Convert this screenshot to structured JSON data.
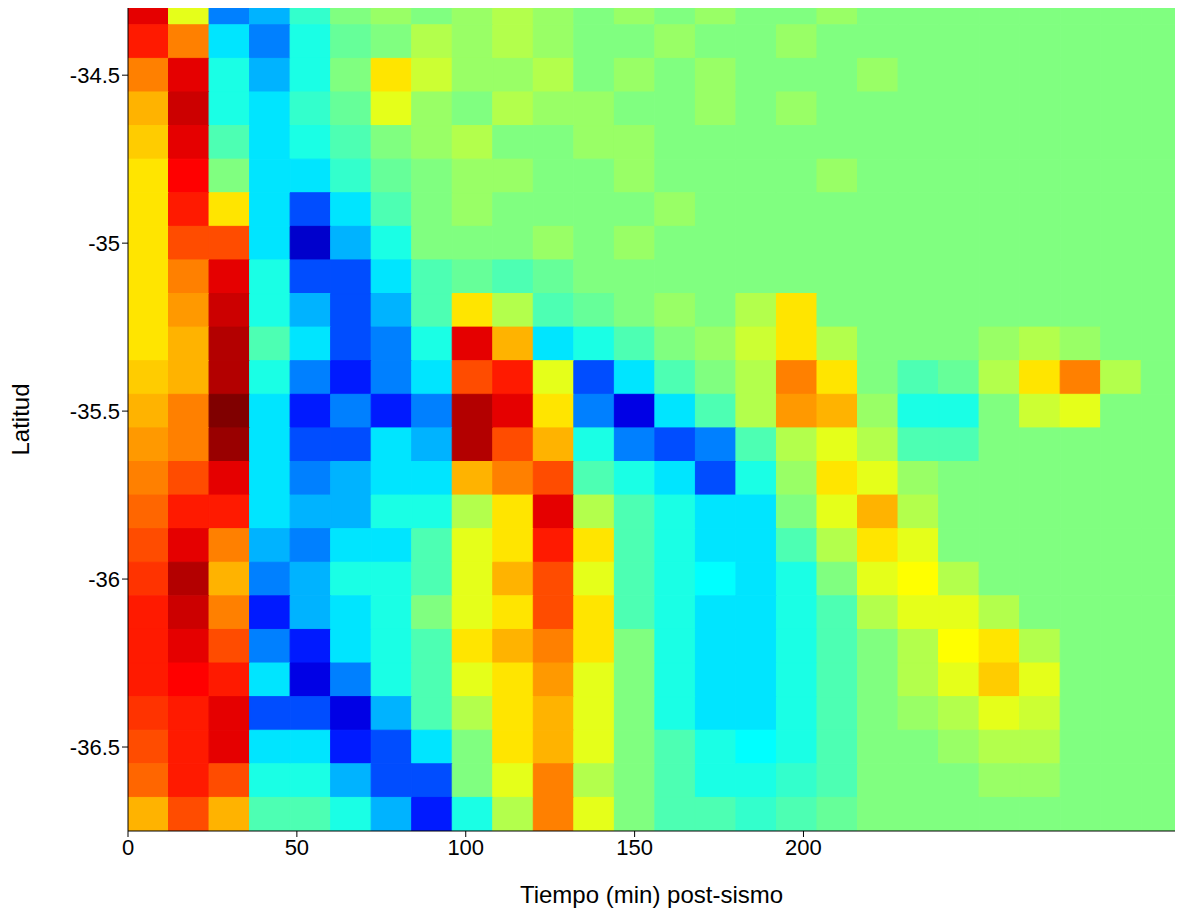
{
  "chart_data": {
    "type": "heatmap",
    "x_label": "Tiempo (min) post-sismo",
    "y_label": "Latitud",
    "xlim": [
      0,
      310
    ],
    "xticks": [
      0,
      50,
      100,
      150,
      200
    ],
    "ylim": [
      -36.75,
      -34.3
    ],
    "yticks": [
      -36.5,
      -36,
      -35.5,
      -35,
      -34.5
    ],
    "zlim": [
      -1,
      1
    ],
    "x": [
      6,
      18,
      30,
      42,
      54,
      66,
      78,
      90,
      102,
      114,
      126,
      138,
      150,
      162,
      174,
      186,
      198,
      210,
      222,
      234,
      246,
      258,
      270,
      282,
      294,
      306
    ],
    "y": [
      -34.3,
      -34.4,
      -34.5,
      -34.6,
      -34.7,
      -34.8,
      -34.9,
      -35.0,
      -35.1,
      -35.2,
      -35.3,
      -35.4,
      -35.5,
      -35.6,
      -35.7,
      -35.8,
      -35.9,
      -36.0,
      -36.1,
      -36.2,
      -36.3,
      -36.4,
      -36.5,
      -36.6,
      -36.7
    ],
    "values": [
      [
        0.8,
        0.2,
        -0.5,
        -0.4,
        -0.15,
        0,
        0.05,
        0,
        0.05,
        0.1,
        0.05,
        0,
        0.05,
        0,
        0.05,
        0,
        0,
        0.05,
        0,
        0,
        0,
        0,
        0,
        0,
        0,
        0
      ],
      [
        0.7,
        0.5,
        -0.3,
        -0.5,
        -0.2,
        -0.05,
        0,
        0.1,
        0.05,
        0.1,
        0.05,
        0,
        0,
        0.05,
        0,
        0,
        0.05,
        0,
        0,
        0,
        0,
        0,
        0,
        0,
        0,
        0
      ],
      [
        0.5,
        0.8,
        -0.2,
        -0.4,
        -0.2,
        0,
        0.3,
        0.15,
        0.05,
        0.05,
        0.1,
        0,
        0.05,
        0,
        0.05,
        0,
        0,
        0,
        0.05,
        0,
        0,
        0,
        0,
        0,
        0,
        0
      ],
      [
        0.4,
        0.85,
        -0.2,
        -0.3,
        -0.15,
        -0.05,
        0.2,
        0.05,
        0,
        0.1,
        0.05,
        0.05,
        0,
        0,
        0.05,
        0,
        0.05,
        0,
        0,
        0,
        0,
        0,
        0,
        0,
        0,
        0
      ],
      [
        0.35,
        0.8,
        -0.1,
        -0.3,
        -0.2,
        -0.1,
        0,
        0.05,
        0.1,
        0,
        0,
        0.05,
        0.05,
        0,
        0,
        0,
        0,
        0,
        0,
        0,
        0,
        0,
        0,
        0,
        0,
        0
      ],
      [
        0.3,
        0.75,
        0,
        -0.3,
        -0.3,
        -0.15,
        -0.05,
        0,
        0.05,
        0.05,
        0,
        0,
        0.05,
        0,
        0,
        0,
        0,
        0.05,
        0,
        0,
        0,
        0,
        0,
        0,
        0,
        0
      ],
      [
        0.3,
        0.7,
        0.3,
        -0.3,
        -0.6,
        -0.3,
        -0.1,
        0,
        0.05,
        0,
        0,
        0,
        0,
        0.05,
        0,
        0,
        0,
        0,
        0,
        0,
        0,
        0,
        0,
        0,
        0,
        0
      ],
      [
        0.3,
        0.6,
        0.6,
        -0.3,
        -0.85,
        -0.4,
        -0.2,
        0,
        0,
        0,
        0.05,
        0,
        0.05,
        0,
        0,
        0,
        0,
        0,
        0,
        0,
        0,
        0,
        0,
        0,
        0,
        0
      ],
      [
        0.3,
        0.5,
        0.8,
        -0.2,
        -0.6,
        -0.6,
        -0.3,
        -0.1,
        -0.05,
        -0.1,
        -0.05,
        0,
        0,
        0,
        0,
        0,
        0,
        0,
        0,
        0,
        0,
        0,
        0,
        0,
        0,
        0
      ],
      [
        0.3,
        0.45,
        0.85,
        -0.2,
        -0.4,
        -0.6,
        -0.4,
        -0.1,
        0.3,
        0.1,
        -0.1,
        -0.05,
        0,
        0.05,
        0,
        0.1,
        0.3,
        0,
        0,
        0,
        0,
        0,
        0,
        0,
        0,
        0
      ],
      [
        0.3,
        0.4,
        0.9,
        -0.1,
        -0.3,
        -0.6,
        -0.5,
        -0.2,
        0.8,
        0.4,
        -0.3,
        -0.2,
        -0.1,
        0,
        0.05,
        0.15,
        0.3,
        0.1,
        0,
        0,
        0,
        0.05,
        0.1,
        0.05,
        0,
        0
      ],
      [
        0.35,
        0.4,
        0.9,
        -0.2,
        -0.5,
        -0.7,
        -0.5,
        -0.3,
        0.6,
        0.7,
        0.2,
        -0.6,
        -0.3,
        -0.1,
        0,
        0.1,
        0.5,
        0.3,
        0,
        -0.1,
        -0.05,
        0.1,
        0.3,
        0.5,
        0.1,
        0
      ],
      [
        0.4,
        0.5,
        1.0,
        -0.3,
        -0.7,
        -0.5,
        -0.7,
        -0.5,
        0.9,
        0.8,
        0.3,
        -0.5,
        -0.8,
        -0.3,
        -0.1,
        0.1,
        0.45,
        0.4,
        0.05,
        -0.2,
        -0.2,
        0,
        0.15,
        0.2,
        0,
        0
      ],
      [
        0.45,
        0.5,
        0.95,
        -0.3,
        -0.6,
        -0.6,
        -0.3,
        -0.4,
        0.9,
        0.6,
        0.4,
        -0.2,
        -0.5,
        -0.6,
        -0.5,
        -0.1,
        0.1,
        0.2,
        0.1,
        -0.1,
        -0.1,
        0,
        0,
        0,
        0,
        0
      ],
      [
        0.5,
        0.6,
        0.8,
        -0.3,
        -0.5,
        -0.4,
        -0.3,
        -0.3,
        0.4,
        0.5,
        0.6,
        -0.1,
        -0.2,
        -0.3,
        -0.6,
        -0.2,
        0.05,
        0.3,
        0.2,
        0.05,
        0,
        0,
        0,
        0,
        0,
        0
      ],
      [
        0.55,
        0.7,
        0.7,
        -0.3,
        -0.4,
        -0.4,
        -0.2,
        -0.2,
        0.1,
        0.3,
        0.8,
        0.1,
        -0.1,
        -0.2,
        -0.3,
        -0.3,
        0,
        0.2,
        0.4,
        0.1,
        0,
        0,
        0,
        0,
        0,
        0
      ],
      [
        0.6,
        0.8,
        0.5,
        -0.4,
        -0.5,
        -0.3,
        -0.3,
        -0.1,
        0.2,
        0.3,
        0.7,
        0.3,
        -0.1,
        -0.2,
        -0.3,
        -0.3,
        -0.1,
        0.1,
        0.3,
        0.2,
        0,
        0,
        0,
        0,
        0,
        0
      ],
      [
        0.65,
        0.9,
        0.4,
        -0.5,
        -0.4,
        -0.2,
        -0.2,
        -0.1,
        0.2,
        0.4,
        0.6,
        0.2,
        -0.1,
        -0.2,
        -0.25,
        -0.3,
        -0.2,
        0,
        0.2,
        0.25,
        0.1,
        0,
        0,
        0,
        0,
        0
      ],
      [
        0.7,
        0.85,
        0.5,
        -0.7,
        -0.4,
        -0.3,
        -0.2,
        0,
        0.2,
        0.3,
        0.6,
        0.3,
        -0.1,
        -0.2,
        -0.3,
        -0.3,
        -0.2,
        -0.1,
        0.1,
        0.2,
        0.2,
        0.1,
        0,
        0,
        0,
        0
      ],
      [
        0.7,
        0.8,
        0.6,
        -0.5,
        -0.7,
        -0.3,
        -0.2,
        -0.1,
        0.3,
        0.4,
        0.5,
        0.3,
        0,
        -0.2,
        -0.3,
        -0.3,
        -0.2,
        -0.1,
        0,
        0.1,
        0.25,
        0.3,
        0.1,
        0,
        0,
        0
      ],
      [
        0.7,
        0.75,
        0.7,
        -0.3,
        -0.8,
        -0.5,
        -0.2,
        -0.1,
        0.2,
        0.3,
        0.45,
        0.2,
        0,
        -0.2,
        -0.3,
        -0.3,
        -0.2,
        -0.1,
        0,
        0.1,
        0.2,
        0.35,
        0.2,
        0,
        0,
        0
      ],
      [
        0.65,
        0.7,
        0.8,
        -0.6,
        -0.6,
        -0.8,
        -0.4,
        -0.1,
        0.1,
        0.3,
        0.4,
        0.2,
        0,
        -0.2,
        -0.3,
        -0.3,
        -0.2,
        -0.1,
        0,
        0.05,
        0.1,
        0.2,
        0.15,
        0,
        0,
        0
      ],
      [
        0.6,
        0.7,
        0.8,
        -0.3,
        -0.3,
        -0.7,
        -0.6,
        -0.3,
        0,
        0.3,
        0.4,
        0.2,
        0,
        -0.1,
        -0.2,
        -0.25,
        -0.2,
        -0.1,
        0,
        0,
        0.05,
        0.1,
        0.1,
        0,
        0,
        0
      ],
      [
        0.55,
        0.7,
        0.6,
        -0.2,
        -0.2,
        -0.4,
        -0.6,
        -0.6,
        0,
        0.2,
        0.5,
        0.1,
        0,
        -0.1,
        -0.2,
        -0.2,
        -0.15,
        -0.1,
        0,
        0,
        0,
        0.05,
        0.05,
        0,
        0,
        0
      ],
      [
        0.4,
        0.6,
        0.4,
        -0.1,
        -0.1,
        -0.2,
        -0.4,
        -0.7,
        -0.2,
        0.1,
        0.5,
        0.2,
        0,
        -0.1,
        -0.1,
        -0.15,
        -0.1,
        -0.05,
        0,
        0,
        0,
        0,
        0,
        0,
        0,
        0
      ]
    ]
  }
}
